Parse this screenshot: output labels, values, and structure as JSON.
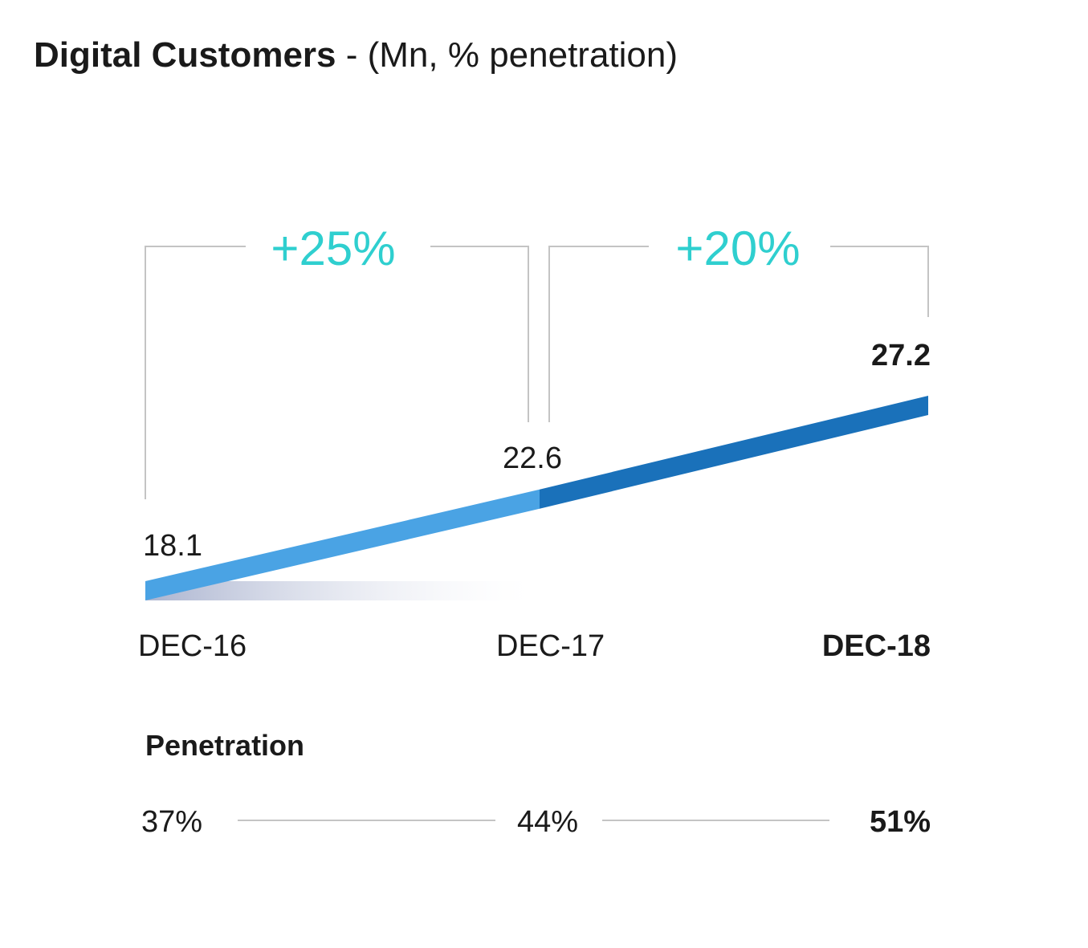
{
  "title": {
    "main": "Digital Customers",
    "sub": "- (Mn, % penetration)"
  },
  "colors": {
    "segment_early": "#4aa3e4",
    "segment_late": "#1a71ba",
    "growth": "#2fcfcf",
    "bracket": "#c4c4c4",
    "text": "#1a1a1a"
  },
  "chart_data": {
    "type": "line",
    "title": "Digital Customers - (Mn, % penetration)",
    "x": [
      "DEC-16",
      "DEC-17",
      "DEC-18"
    ],
    "series": [
      {
        "values": [
          18.1,
          22.6,
          27.2
        ],
        "labels": [
          "18.1",
          "22.6",
          "27.2"
        ]
      }
    ],
    "growth": [
      {
        "from": "DEC-16",
        "to": "DEC-17",
        "label": "+25%"
      },
      {
        "from": "DEC-17",
        "to": "DEC-18",
        "label": "+20%"
      }
    ],
    "penetration": {
      "label": "Penetration",
      "values": [
        37,
        44,
        51
      ],
      "labels": [
        "37%",
        "44%",
        "51%"
      ]
    },
    "highlight": "DEC-18"
  }
}
